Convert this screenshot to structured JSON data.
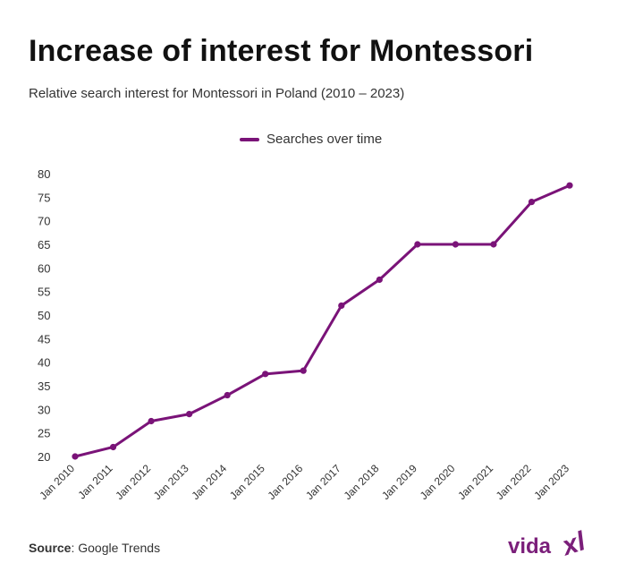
{
  "header": {
    "title": "Increase of interest for Montessori",
    "subtitle": "Relative search interest for Montessori in Poland (2010 – 2023)"
  },
  "colors": {
    "series": "#7a1378",
    "logo": "#7b1f7a"
  },
  "chart_data": {
    "type": "line",
    "title": "Increase of interest for Montessori",
    "subtitle": "Relative search interest for Montessori in Poland (2010 – 2023)",
    "categories": [
      "Jan 2010",
      "Jan 2011",
      "Jan 2012",
      "Jan 2013",
      "Jan 2014",
      "Jan 2015",
      "Jan 2016",
      "Jan 2017",
      "Jan 2018",
      "Jan 2019",
      "Jan 2020",
      "Jan 2021",
      "Jan 2022",
      "Jan 2023"
    ],
    "series": [
      {
        "name": "Searches over time",
        "values": [
          20,
          22,
          27.5,
          29,
          33,
          37.5,
          38.2,
          52,
          57.5,
          65,
          65,
          65,
          74,
          77.5
        ]
      }
    ],
    "yticks": [
      20,
      25,
      30,
      35,
      40,
      45,
      50,
      55,
      60,
      65,
      70,
      75,
      80
    ],
    "ylim": [
      20,
      80
    ],
    "xlabel": "",
    "ylabel": "",
    "grid": false,
    "legend_position": "top"
  },
  "footer": {
    "source_label": "Source",
    "source_text": ": Google Trends"
  },
  "logo": {
    "text": "vidaxl"
  }
}
